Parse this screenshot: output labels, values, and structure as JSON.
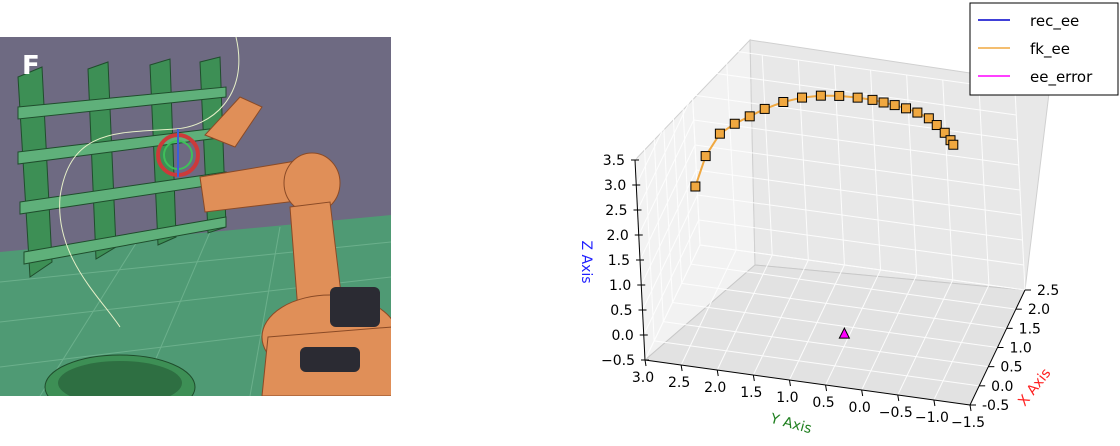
{
  "panel": {
    "label": "F"
  },
  "chart_data": {
    "type": "scatter",
    "projection": "3d",
    "grid": true,
    "legend_position": "top-right",
    "xlabel": "X Axis",
    "ylabel": "Y Axis",
    "zlabel": "Z Axis",
    "xlim": [
      -0.5,
      2.5
    ],
    "ylim": [
      -1.5,
      3.0
    ],
    "zlim": [
      -0.5,
      3.5
    ],
    "x_ticks": [
      "-0.5",
      "0.0",
      "0.5",
      "1.0",
      "1.5",
      "2.0",
      "2.5"
    ],
    "y_ticks": [
      "3.0",
      "2.5",
      "2.0",
      "1.5",
      "1.0",
      "0.5",
      "0.0",
      "−0.5",
      "−1.0",
      "−1.5"
    ],
    "z_ticks": [
      "−0.5",
      "0.0",
      "0.5",
      "1.0",
      "1.5",
      "2.0",
      "2.5",
      "3.0",
      "3.5"
    ],
    "colors": {
      "rec_ee": "#0000cc",
      "fk_ee": "#f0a840",
      "ee_error": "#ff00ff",
      "x_label": "#ff2020",
      "y_label": "#208020",
      "z_label": "#2020ff"
    },
    "series": [
      {
        "name": "rec_ee",
        "marker": "none",
        "points": []
      },
      {
        "name": "fk_ee",
        "marker": "square",
        "points": [
          {
            "x": 1.0,
            "y": 2.6,
            "z": 1.9
          },
          {
            "x": 1.05,
            "y": 2.45,
            "z": 2.5
          },
          {
            "x": 1.1,
            "y": 2.25,
            "z": 2.95
          },
          {
            "x": 1.15,
            "y": 2.05,
            "z": 3.15
          },
          {
            "x": 1.2,
            "y": 1.85,
            "z": 3.3
          },
          {
            "x": 1.25,
            "y": 1.65,
            "z": 3.45
          },
          {
            "x": 1.3,
            "y": 1.4,
            "z": 3.6
          },
          {
            "x": 1.35,
            "y": 1.15,
            "z": 3.7
          },
          {
            "x": 1.4,
            "y": 0.9,
            "z": 3.75
          },
          {
            "x": 1.42,
            "y": 0.65,
            "z": 3.78
          },
          {
            "x": 1.44,
            "y": 0.4,
            "z": 3.78
          },
          {
            "x": 1.46,
            "y": 0.2,
            "z": 3.76
          },
          {
            "x": 1.47,
            "y": 0.05,
            "z": 3.73
          },
          {
            "x": 1.48,
            "y": -0.1,
            "z": 3.7
          },
          {
            "x": 1.5,
            "y": -0.25,
            "z": 3.65
          },
          {
            "x": 1.52,
            "y": -0.4,
            "z": 3.58
          },
          {
            "x": 1.54,
            "y": -0.55,
            "z": 3.48
          },
          {
            "x": 1.56,
            "y": -0.65,
            "z": 3.35
          },
          {
            "x": 1.58,
            "y": -0.75,
            "z": 3.2
          },
          {
            "x": 1.6,
            "y": -0.82,
            "z": 3.05
          },
          {
            "x": 1.62,
            "y": -0.85,
            "z": 2.95
          }
        ]
      },
      {
        "name": "ee_error",
        "marker": "triangle",
        "points": [
          {
            "x": 0.2,
            "y": 0.4,
            "z": 0.0
          }
        ]
      }
    ]
  }
}
